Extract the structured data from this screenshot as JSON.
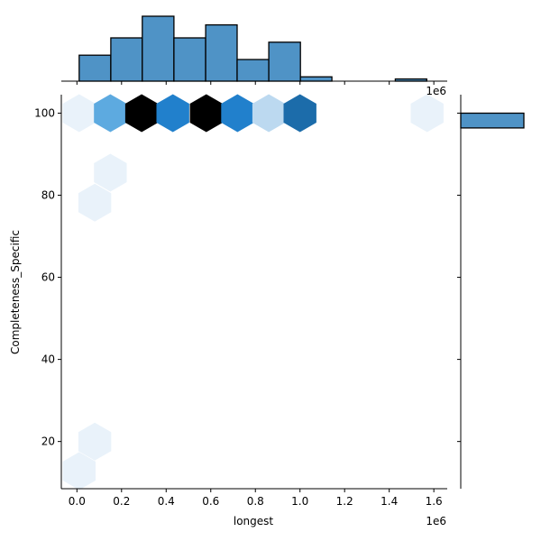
{
  "chart_data": {
    "type": "hexbin",
    "title": "",
    "xlabel": "longest",
    "ylabel": "Completeness_Specific",
    "x_offset_label": "1e6",
    "top_hist_offset_label": "1e6",
    "xlim": [
      -0.07,
      1.66
    ],
    "ylim": [
      8.5,
      104.5
    ],
    "x_ticks": [
      0.0,
      0.2,
      0.4,
      0.6,
      0.8,
      1.0,
      1.2,
      1.4,
      1.6
    ],
    "x_tick_labels": [
      "0.0",
      "0.2",
      "0.4",
      "0.6",
      "0.8",
      "1.0",
      "1.2",
      "1.4",
      "1.6"
    ],
    "y_ticks": [
      20,
      40,
      60,
      80,
      100
    ],
    "y_tick_labels": [
      "20",
      "40",
      "60",
      "80",
      "100"
    ],
    "grid": false,
    "colormap": "Blues",
    "hexagons": [
      {
        "x": 0.01,
        "y": 100,
        "level": 0.04
      },
      {
        "x": 0.15,
        "y": 100,
        "level": 0.55
      },
      {
        "x": 0.29,
        "y": 100,
        "level": 1.0
      },
      {
        "x": 0.43,
        "y": 100,
        "level": 0.72
      },
      {
        "x": 0.58,
        "y": 100,
        "level": 1.0
      },
      {
        "x": 0.72,
        "y": 100,
        "level": 0.72
      },
      {
        "x": 0.86,
        "y": 100,
        "level": 0.28
      },
      {
        "x": 1.0,
        "y": 100,
        "level": 0.85
      },
      {
        "x": 1.57,
        "y": 100,
        "level": 0.04
      },
      {
        "x": 0.15,
        "y": 85.5,
        "level": 0.04
      },
      {
        "x": 0.08,
        "y": 78.2,
        "level": 0.04
      },
      {
        "x": 0.08,
        "y": 20.0,
        "level": 0.04
      },
      {
        "x": 0.01,
        "y": 12.8,
        "level": 0.04
      }
    ],
    "top_histogram": {
      "bin_edges": [
        0.01,
        0.152,
        0.293,
        0.435,
        0.577,
        0.718,
        0.86,
        1.002,
        1.143,
        1.285,
        1.427,
        1.568
      ],
      "counts": [
        6,
        10,
        15,
        10,
        13,
        5,
        9,
        1,
        0,
        0,
        0.5
      ]
    },
    "right_histogram": {
      "bin_edges": [
        96.4,
        100
      ],
      "counts": [
        1
      ]
    },
    "colors": {
      "bar_fill": "#4f93c6",
      "bar_edge": "#000000"
    }
  }
}
